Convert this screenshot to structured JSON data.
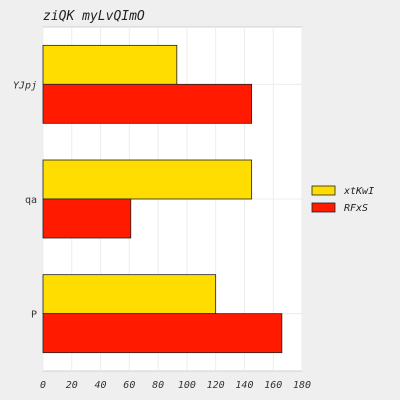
{
  "chart_data": {
    "type": "bar",
    "orientation": "horizontal",
    "title": "ziQK myLvQImO",
    "xlabel": "",
    "ylabel": "",
    "categories": [
      "YJpj",
      "qa",
      "P"
    ],
    "series": [
      {
        "name": "xtKwI",
        "values": [
          93,
          145,
          120
        ],
        "color": "#FFDD00"
      },
      {
        "name": "RFxS",
        "values": [
          145,
          61,
          166
        ],
        "color": "#FF1A00"
      }
    ],
    "xlim": [
      0,
      180
    ],
    "xticks": [
      0,
      20,
      40,
      60,
      80,
      100,
      120,
      140,
      160,
      180
    ],
    "grid": true,
    "legend": "right"
  }
}
